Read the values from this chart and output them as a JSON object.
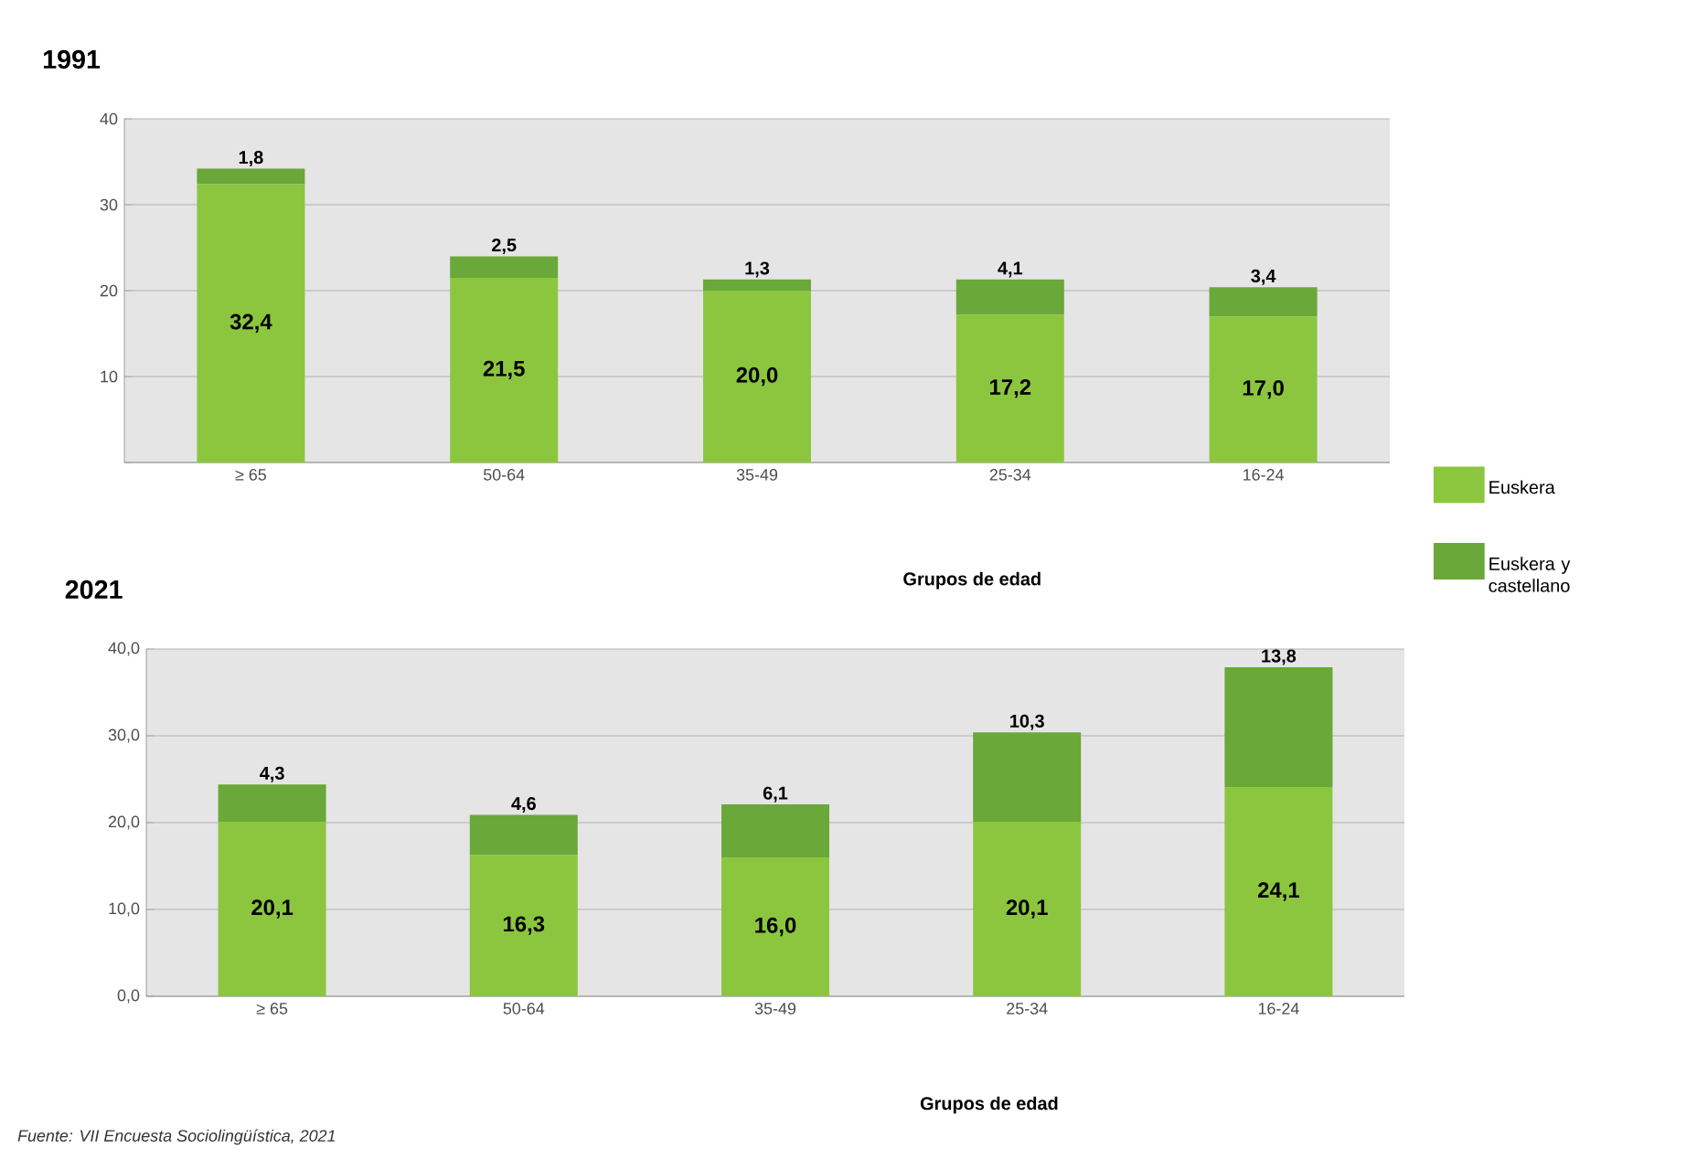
{
  "chart_data": [
    {
      "type": "bar",
      "title": "1991",
      "xlabel": "Grupos de edad",
      "stacked": true,
      "grid": "y",
      "legend": "right",
      "categories": [
        "≥ 65",
        "50-64",
        "35-49",
        "25-34",
        "16-24"
      ],
      "ylim": [
        0,
        40
      ],
      "yticks": [
        {
          "value": 0,
          "label": null
        },
        10,
        20,
        30,
        40
      ],
      "series": [
        {
          "name": "Euskera",
          "color": "#8cc63f",
          "values": [
            32.4,
            21.5,
            20.0,
            17.2,
            17.0
          ],
          "value_labels": [
            "32,4",
            "21,5",
            "20,0",
            "17,2",
            "17,0"
          ]
        },
        {
          "name": "Euskera y castellano",
          "color": "#6aa83a",
          "values": [
            1.8,
            2.5,
            1.3,
            4.1,
            3.4
          ],
          "value_labels": [
            "1,8",
            "2,5",
            "1,3",
            "4,1",
            "3,4"
          ]
        }
      ]
    },
    {
      "type": "bar",
      "title": "2021",
      "xlabel": "Grupos de edad",
      "stacked": true,
      "grid": "y",
      "categories": [
        "≥ 65",
        "50-64",
        "35-49",
        "25-34",
        "16-24"
      ],
      "ylim": [
        0,
        40
      ],
      "yticks": [
        {
          "value": 0,
          "label": "0,0"
        },
        {
          "value": 10,
          "label": "10,0"
        },
        {
          "value": 20,
          "label": "20,0"
        },
        {
          "value": 30,
          "label": "30,0"
        },
        {
          "value": 40,
          "label": "40,0"
        }
      ],
      "annotations": [
        "Fuente: *VII Encuesta Sociolingüística, 2021*"
      ],
      "series": [
        {
          "color": "#8cc63f",
          "values": [
            20.1,
            16.3,
            16.0,
            20.1,
            24.1
          ],
          "value_labels": [
            "20,1",
            "16,3",
            "16,0",
            "20,1",
            "24,1"
          ]
        },
        {
          "color": "#6aa83a",
          "values": [
            4.3,
            4.6,
            6.1,
            10.3,
            13.8
          ],
          "value_labels": [
            "4,3",
            "4,6",
            "6,1",
            "10,3",
            "13,8"
          ]
        }
      ]
    }
  ]
}
